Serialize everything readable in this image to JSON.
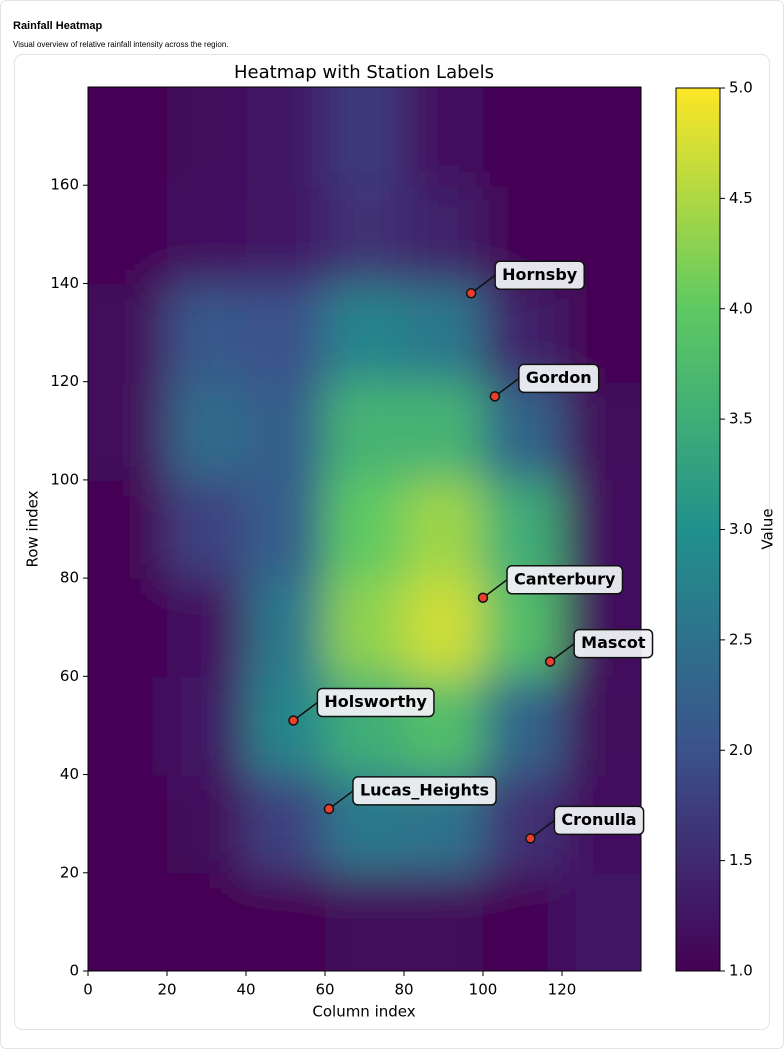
{
  "page": {
    "title": "Rainfall Heatmap",
    "subtitle": "Visual overview of relative rainfall intensity across the region."
  },
  "chart_data": {
    "type": "heatmap",
    "title": "Heatmap with Station Labels",
    "x_label": "Column index",
    "y_label": "Row index",
    "colorbar_label": "Value",
    "x": [
      10,
      30,
      50,
      70,
      90,
      110,
      130
    ],
    "y": [
      10,
      30,
      50,
      70,
      90,
      110,
      130,
      150,
      170
    ],
    "z": [
      [
        1,
        1,
        1,
        1.1,
        1.1,
        1,
        1.3
      ],
      [
        1,
        1.1,
        1.8,
        2.6,
        2.5,
        1.6,
        1.2
      ],
      [
        1,
        1.3,
        2.8,
        3.5,
        3.8,
        2.3,
        1.1
      ],
      [
        1,
        1.2,
        2.6,
        4.3,
        4.7,
        3.8,
        1.2
      ],
      [
        1,
        1.8,
        2.2,
        4.0,
        4.4,
        3.5,
        1.2
      ],
      [
        1.1,
        2.4,
        2.2,
        3.6,
        3.6,
        2.3,
        1.1
      ],
      [
        1.1,
        2.1,
        2.0,
        2.8,
        2.6,
        1.4,
        1.0
      ],
      [
        1,
        1.2,
        1.3,
        1.6,
        1.4,
        1.0,
        1.0
      ],
      [
        1,
        1.1,
        1.3,
        1.7,
        1.2,
        1.0,
        1.0
      ]
    ],
    "colormap": [
      "#440154",
      "#3b528b",
      "#21918c",
      "#5ec962",
      "#fde725"
    ],
    "clim": [
      1,
      5
    ],
    "cticks": [
      {
        "value": 1,
        "label": "1.0"
      },
      {
        "value": 1.5,
        "label": "1.5"
      },
      {
        "value": 2,
        "label": "2.0"
      },
      {
        "value": 2.5,
        "label": "2.5"
      },
      {
        "value": 3,
        "label": "3.0"
      },
      {
        "value": 3.5,
        "label": "3.5"
      },
      {
        "value": 4,
        "label": "4.0"
      },
      {
        "value": 4.5,
        "label": "4.5"
      },
      {
        "value": 5,
        "label": "5.0"
      }
    ],
    "xlim": [
      0,
      140
    ],
    "ylim": [
      0,
      180
    ],
    "xticks": [
      0,
      20,
      40,
      60,
      80,
      100,
      120
    ],
    "yticks": [
      0,
      20,
      40,
      60,
      80,
      100,
      120,
      140,
      160
    ],
    "points": {
      "color": "#e8402c",
      "labels": [
        "Hornsby",
        "Gordon",
        "Canterbury",
        "Mascot",
        "Holsworthy",
        "Lucas_Heights",
        "Cronulla"
      ],
      "x": [
        97,
        103,
        100,
        117,
        52,
        61,
        112
      ],
      "y": [
        138,
        117,
        76,
        63,
        51,
        33,
        27
      ]
    }
  }
}
